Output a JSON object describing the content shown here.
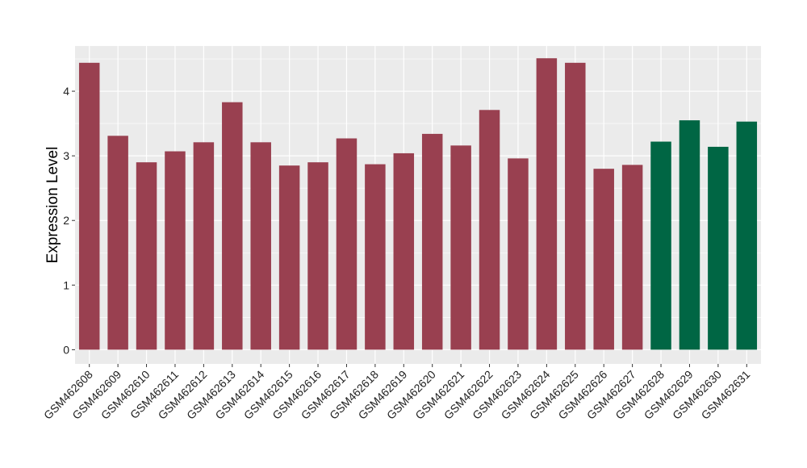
{
  "chart_data": {
    "type": "bar",
    "title": "",
    "xlabel": "",
    "ylabel": "Expression Level",
    "ylim": [
      -0.22,
      4.7
    ],
    "yticks": [
      0,
      1,
      2,
      3,
      4
    ],
    "grid": true,
    "categories": [
      "GSM462608",
      "GSM462609",
      "GSM462610",
      "GSM462611",
      "GSM462612",
      "GSM462613",
      "GSM462614",
      "GSM462615",
      "GSM462616",
      "GSM462617",
      "GSM462618",
      "GSM462619",
      "GSM462620",
      "GSM462621",
      "GSM462622",
      "GSM462623",
      "GSM462624",
      "GSM462625",
      "GSM462626",
      "GSM462627",
      "GSM462628",
      "GSM462629",
      "GSM462630",
      "GSM462631"
    ],
    "values": [
      4.44,
      3.31,
      2.9,
      3.07,
      3.21,
      3.83,
      3.21,
      2.85,
      2.9,
      3.27,
      2.87,
      3.04,
      3.34,
      3.16,
      3.71,
      2.96,
      4.51,
      4.44,
      2.8,
      2.86,
      3.22,
      3.55,
      3.14,
      3.53
    ],
    "groups": [
      0,
      0,
      0,
      0,
      0,
      0,
      0,
      0,
      0,
      0,
      0,
      0,
      0,
      0,
      0,
      0,
      0,
      0,
      0,
      0,
      1,
      1,
      1,
      1
    ],
    "colors": [
      "#994050",
      "#006644"
    ],
    "panel_background": "#ebebeb",
    "gridline_color": "#ffffff"
  }
}
